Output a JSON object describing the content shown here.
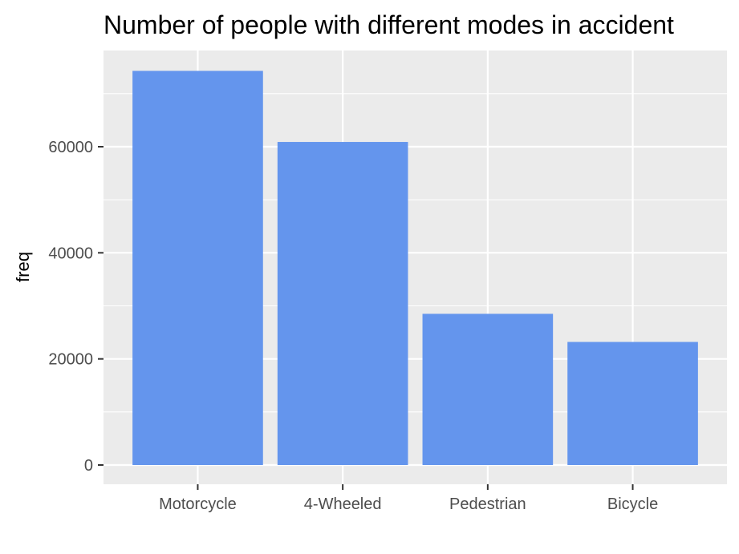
{
  "chart_data": {
    "type": "bar",
    "title": "Number of people with different modes in accident",
    "xlabel": "",
    "ylabel": "freq",
    "categories": [
      "Motorcycle",
      "4-Wheeled",
      "Pedestrian",
      "Bicycle"
    ],
    "values": [
      74300,
      60900,
      28500,
      23200
    ],
    "ylim": [
      0,
      78000
    ],
    "yticks": [
      0,
      20000,
      40000,
      60000
    ],
    "ytick_labels": [
      "0",
      "20000",
      "40000",
      "60000"
    ],
    "grid": true,
    "colors": {
      "bar": "#6495ED",
      "panel": "#EBEBEB",
      "grid": "#FFFFFF",
      "tick": "#333333"
    }
  }
}
